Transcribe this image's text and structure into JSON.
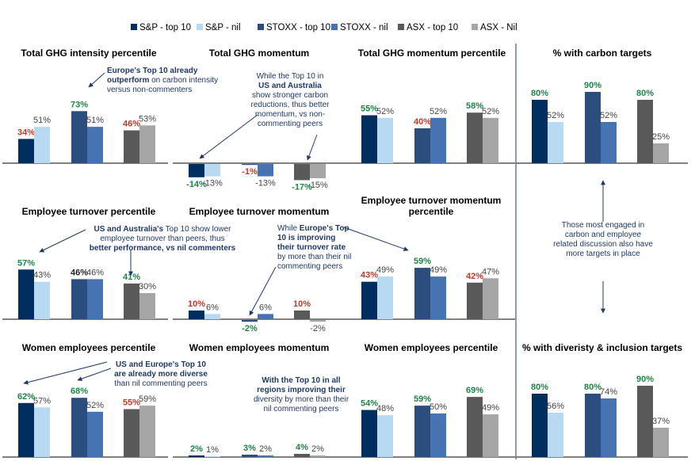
{
  "colors": {
    "sp_top10": "#002f5f",
    "sp_nil": "#b7d9f2",
    "stoxx_top10": "#2b4e7e",
    "stoxx_nil": "#4673b2",
    "asx_top10": "#595959",
    "asx_nil": "#a6a6a6",
    "label_green": "#1e8449",
    "label_red": "#c0392b",
    "label_black": "#222222",
    "label_gray": "#444444",
    "annotation": "#1f3864"
  },
  "legend": [
    {
      "key": "sp_top10",
      "label": "S&P - top 10"
    },
    {
      "key": "sp_nil",
      "label": "S&P - nil"
    },
    {
      "key": "stoxx_top10",
      "label": "STOXX - top 10"
    },
    {
      "key": "stoxx_nil",
      "label": "STOXX - nil"
    },
    {
      "key": "asx_top10",
      "label": "ASX - top 10"
    },
    {
      "key": "asx_nil",
      "label": "ASX - Nil"
    }
  ],
  "chart_data": [
    {
      "id": "ghg_intensity_pct",
      "type": "bar",
      "title": [
        "Total GHG intensity percentile"
      ],
      "unit": "%",
      "categories": [
        "S&P",
        "STOXX",
        "ASX"
      ],
      "series": [
        {
          "name": "top 10",
          "values": [
            34,
            73,
            46
          ]
        },
        {
          "name": "nil",
          "values": [
            51,
            51,
            53
          ]
        }
      ],
      "label_colors": [
        [
          "red",
          "green",
          "red"
        ],
        [
          "gray",
          "gray",
          "gray"
        ]
      ]
    },
    {
      "id": "ghg_momentum",
      "type": "bar",
      "title": [
        "Total GHG momentum"
      ],
      "unit": "%",
      "categories": [
        "S&P",
        "STOXX",
        "ASX"
      ],
      "series": [
        {
          "name": "top 10",
          "values": [
            -14,
            -1,
            -17
          ]
        },
        {
          "name": "nil",
          "values": [
            -13,
            -13,
            -15
          ]
        }
      ],
      "label_colors": [
        [
          "green",
          "red",
          "green"
        ],
        [
          "gray",
          "gray",
          "gray"
        ]
      ]
    },
    {
      "id": "ghg_momentum_pct",
      "type": "bar",
      "title": [
        "Total GHG momentum percentile"
      ],
      "unit": "%",
      "categories": [
        "S&P",
        "STOXX",
        "ASX"
      ],
      "series": [
        {
          "name": "top 10",
          "values": [
            55,
            40,
            58
          ]
        },
        {
          "name": "nil",
          "values": [
            52,
            52,
            52
          ]
        }
      ],
      "label_colors": [
        [
          "green",
          "red",
          "green"
        ],
        [
          "gray",
          "gray",
          "gray"
        ]
      ]
    },
    {
      "id": "carbon_targets",
      "type": "bar",
      "title": [
        "% with carbon targets"
      ],
      "unit": "%",
      "categories": [
        "S&P",
        "STOXX",
        "ASX"
      ],
      "series": [
        {
          "name": "top 10",
          "values": [
            80,
            90,
            80
          ]
        },
        {
          "name": "nil",
          "values": [
            52,
            52,
            25
          ]
        }
      ],
      "label_colors": [
        [
          "green",
          "green",
          "green"
        ],
        [
          "gray",
          "gray",
          "gray"
        ]
      ]
    },
    {
      "id": "turnover_pct",
      "type": "bar",
      "title": [
        "Employee turnover percentile"
      ],
      "unit": "%",
      "categories": [
        "S&P",
        "STOXX",
        "ASX"
      ],
      "series": [
        {
          "name": "top 10",
          "values": [
            57,
            46,
            41
          ]
        },
        {
          "name": "nil",
          "values": [
            43,
            46,
            30
          ]
        }
      ],
      "label_colors": [
        [
          "green",
          "black",
          "green"
        ],
        [
          "gray",
          "gray",
          "gray"
        ]
      ]
    },
    {
      "id": "turnover_momentum",
      "type": "bar",
      "title": [
        "Employee turnover momentum"
      ],
      "unit": "%",
      "categories": [
        "S&P",
        "STOXX",
        "ASX"
      ],
      "series": [
        {
          "name": "top 10",
          "values": [
            10,
            -2,
            10
          ]
        },
        {
          "name": "nil",
          "values": [
            6,
            6,
            -2
          ]
        }
      ],
      "label_colors": [
        [
          "red",
          "green",
          "red"
        ],
        [
          "gray",
          "gray",
          "gray"
        ]
      ]
    },
    {
      "id": "turnover_momentum_pct",
      "type": "bar",
      "title": [
        "Employee turnover momentum",
        "percentile"
      ],
      "unit": "%",
      "categories": [
        "S&P",
        "STOXX",
        "ASX"
      ],
      "series": [
        {
          "name": "top 10",
          "values": [
            43,
            59,
            42
          ]
        },
        {
          "name": "nil",
          "values": [
            49,
            49,
            47
          ]
        }
      ],
      "label_colors": [
        [
          "red",
          "green",
          "red"
        ],
        [
          "gray",
          "gray",
          "gray"
        ]
      ]
    },
    {
      "id": "women_pct",
      "type": "bar",
      "title": [
        "Women employees percentile"
      ],
      "unit": "%",
      "categories": [
        "S&P",
        "STOXX",
        "ASX"
      ],
      "series": [
        {
          "name": "top 10",
          "values": [
            62,
            68,
            55
          ]
        },
        {
          "name": "nil",
          "values": [
            57,
            52,
            59
          ]
        }
      ],
      "label_colors": [
        [
          "green",
          "green",
          "red"
        ],
        [
          "gray",
          "gray",
          "gray"
        ]
      ]
    },
    {
      "id": "women_momentum",
      "type": "bar",
      "title": [
        "Women employees momentum"
      ],
      "unit": "%",
      "categories": [
        "S&P",
        "STOXX",
        "ASX"
      ],
      "series": [
        {
          "name": "top 10",
          "values": [
            2,
            3,
            4
          ]
        },
        {
          "name": "nil",
          "values": [
            1,
            2,
            2
          ]
        }
      ],
      "label_colors": [
        [
          "green",
          "green",
          "green"
        ],
        [
          "gray",
          "gray",
          "gray"
        ]
      ]
    },
    {
      "id": "women_pct_2",
      "type": "bar",
      "title": [
        "Women employees percentile"
      ],
      "unit": "%",
      "categories": [
        "S&P",
        "STOXX",
        "ASX"
      ],
      "series": [
        {
          "name": "top 10",
          "values": [
            54,
            59,
            69
          ]
        },
        {
          "name": "nil",
          "values": [
            48,
            50,
            49
          ]
        }
      ],
      "label_colors": [
        [
          "green",
          "green",
          "green"
        ],
        [
          "gray",
          "gray",
          "gray"
        ]
      ]
    },
    {
      "id": "di_targets",
      "type": "bar",
      "title": [
        "% with diveristy & inclusion targets"
      ],
      "unit": "%",
      "categories": [
        "S&P",
        "STOXX",
        "ASX"
      ],
      "series": [
        {
          "name": "top 10",
          "values": [
            80,
            80,
            90
          ]
        },
        {
          "name": "nil",
          "values": [
            56,
            74,
            37
          ]
        }
      ],
      "label_colors": [
        [
          "green",
          "green",
          "green"
        ],
        [
          "gray",
          "gray",
          "gray"
        ]
      ]
    }
  ],
  "annotations": [
    {
      "id": "ann_europe_ghg",
      "lines": [
        [
          {
            "t": "Europe's Top 10 already",
            "b": true
          }
        ],
        [
          {
            "t": "outperform",
            "b": true
          },
          {
            "t": " on carbon intensity",
            "b": false
          }
        ],
        [
          {
            "t": "versus non-commenters",
            "b": false
          }
        ]
      ]
    },
    {
      "id": "ann_us_aus_momentum",
      "lines": [
        [
          {
            "t": "While the Top 10 in",
            "b": false
          }
        ],
        [
          {
            "t": "US and Australia",
            "b": true
          }
        ],
        [
          {
            "t": "show stronger carbon",
            "b": false
          }
        ],
        [
          {
            "t": "reductions, thus better",
            "b": false
          }
        ],
        [
          {
            "t": "momentum, vs non-",
            "b": false
          }
        ],
        [
          {
            "t": "commenting peers",
            "b": false
          }
        ]
      ]
    },
    {
      "id": "ann_engaged",
      "lines": [
        [
          {
            "t": "Those most engaged in",
            "b": false
          }
        ],
        [
          {
            "t": "carbon and employee",
            "b": false
          }
        ],
        [
          {
            "t": "related discussion also have",
            "b": false
          }
        ],
        [
          {
            "t": "more targets in place",
            "b": false
          }
        ]
      ]
    },
    {
      "id": "ann_turnover",
      "lines": [
        [
          {
            "t": "US and Australia's",
            "b": true
          },
          {
            "t": " Top 10 show lower",
            "b": false
          }
        ],
        [
          {
            "t": "employee turnover than peers, thus",
            "b": false
          }
        ],
        [
          {
            "t": "better performance, vs nil commenters",
            "b": true
          }
        ]
      ]
    },
    {
      "id": "ann_europe_turnover",
      "lines": [
        [
          {
            "t": "While ",
            "b": false
          },
          {
            "t": "Europe's Top",
            "b": true
          }
        ],
        [
          {
            "t": "10 is improving",
            "b": true
          }
        ],
        [
          {
            "t": "their turnover rate",
            "b": true
          }
        ],
        [
          {
            "t": "by more than their nil",
            "b": false
          }
        ],
        [
          {
            "t": "commenting peers",
            "b": false
          }
        ]
      ]
    },
    {
      "id": "ann_diverse",
      "lines": [
        [
          {
            "t": "US and Europe's Top 10",
            "b": true
          }
        ],
        [
          {
            "t": "are already more diverse",
            "b": true
          }
        ],
        [
          {
            "t": "than nil commenting peers",
            "b": false
          }
        ]
      ]
    },
    {
      "id": "ann_women_momentum",
      "lines": [
        [
          {
            "t": "With the Top 10 in all",
            "b": true
          }
        ],
        [
          {
            "t": "regions improving their",
            "b": true
          }
        ],
        [
          {
            "t": "diversity by more than their",
            "b": false
          }
        ],
        [
          {
            "t": "nil commenting peers",
            "b": false
          }
        ]
      ]
    }
  ]
}
